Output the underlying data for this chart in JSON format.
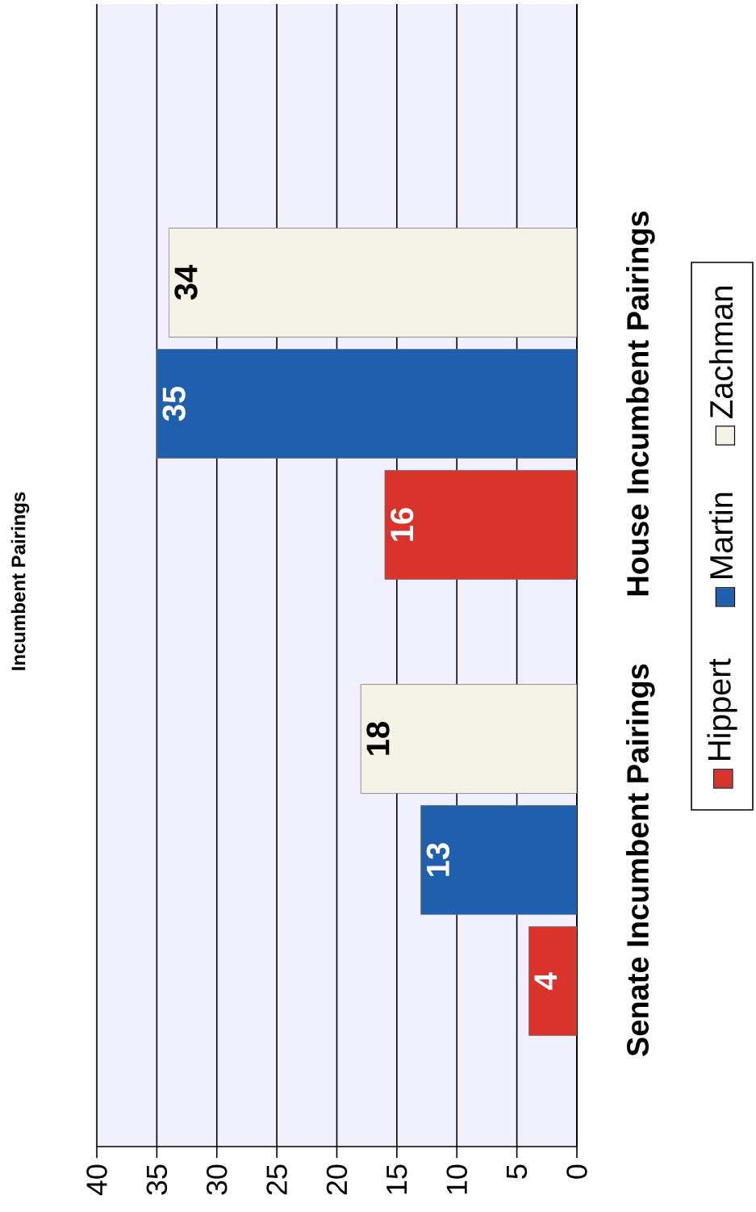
{
  "chart_data": {
    "type": "bar",
    "orientation": "horizontal",
    "title": "Incumbent Pairings",
    "categories": [
      "House Incumbent Pairings",
      "Senate Incumbent Pairings"
    ],
    "series": [
      {
        "name": "Hippert",
        "color": "#d8342c",
        "values": [
          16,
          4
        ]
      },
      {
        "name": "Martin",
        "color": "#1f5fae",
        "values": [
          35,
          13
        ]
      },
      {
        "name": "Zachman",
        "color": "#f5f2e8",
        "values": [
          34,
          18
        ]
      }
    ],
    "xlim": [
      40,
      0
    ],
    "xticks": [
      0,
      5,
      10,
      15,
      20,
      25,
      30,
      35,
      40
    ],
    "grid": "x",
    "legend": "right",
    "data_labels": true
  }
}
